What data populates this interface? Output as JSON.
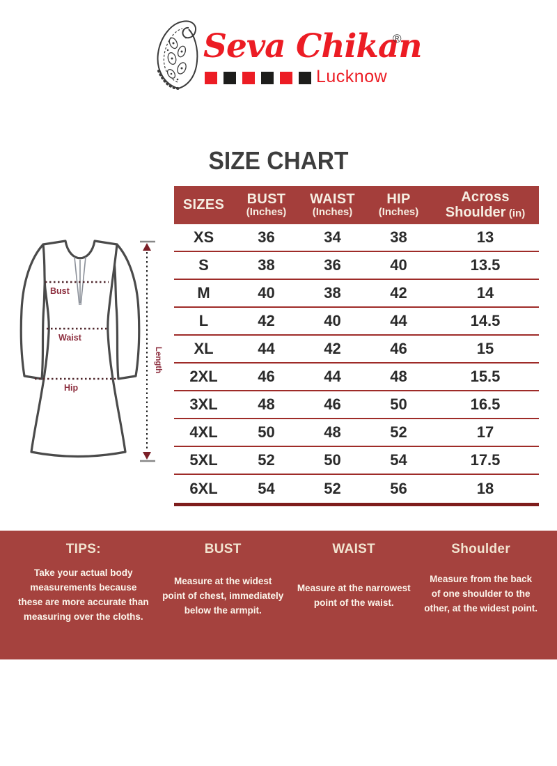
{
  "brand": {
    "name": "Seva Chikan",
    "registered_mark": "®",
    "city": "Lucknow",
    "squares": [
      "red",
      "black",
      "red",
      "black",
      "red",
      "black"
    ],
    "colors": {
      "brand_red": "#EC1C24",
      "square_black": "#1D1D1B"
    }
  },
  "title": "SIZE CHART",
  "table": {
    "headers": [
      {
        "line1": "SIZES",
        "line2": ""
      },
      {
        "line1": "BUST",
        "line2": "(Inches)"
      },
      {
        "line1": "WAIST",
        "line2": "(Inches)"
      },
      {
        "line1": "HIP",
        "line2": "(Inches)"
      },
      {
        "line1": "Across",
        "line2": "Shoulder",
        "line2_small": "(in)"
      }
    ],
    "rows": [
      [
        "XS",
        "36",
        "34",
        "38",
        "13"
      ],
      [
        "S",
        "38",
        "36",
        "40",
        "13.5"
      ],
      [
        "M",
        "40",
        "38",
        "42",
        "14"
      ],
      [
        "L",
        "42",
        "40",
        "44",
        "14.5"
      ],
      [
        "XL",
        "44",
        "42",
        "46",
        "15"
      ],
      [
        "2XL",
        "46",
        "44",
        "48",
        "15.5"
      ],
      [
        "3XL",
        "48",
        "46",
        "50",
        "16.5"
      ],
      [
        "4XL",
        "50",
        "48",
        "52",
        "17"
      ],
      [
        "5XL",
        "52",
        "50",
        "54",
        "17.5"
      ],
      [
        "6XL",
        "54",
        "52",
        "56",
        "18"
      ]
    ],
    "colors": {
      "header_bg": "#A43E3B",
      "row_divider": "#9E2B28",
      "bottom_border": "#7E1D1C"
    }
  },
  "diagram": {
    "bust_label": "Bust",
    "waist_label": "Waist",
    "hip_label": "Hip",
    "length_label": "Length",
    "label_color": "#8D2F3F"
  },
  "tips": {
    "background": "#A5423E",
    "columns": [
      {
        "heading": "TIPS:",
        "text": "Take your actual body\nmeasurements because\nthese are more accurate than\nmeasuring over the cloths."
      },
      {
        "heading": "BUST",
        "text": "Measure at the widest\npoint of chest, immediately\nbelow the armpit."
      },
      {
        "heading": "WAIST",
        "text": "Measure at the narrowest\npoint of the waist."
      },
      {
        "heading": "Shoulder",
        "text": "Measure from the back\nof one shoulder to the\nother, at the widest point."
      }
    ]
  }
}
